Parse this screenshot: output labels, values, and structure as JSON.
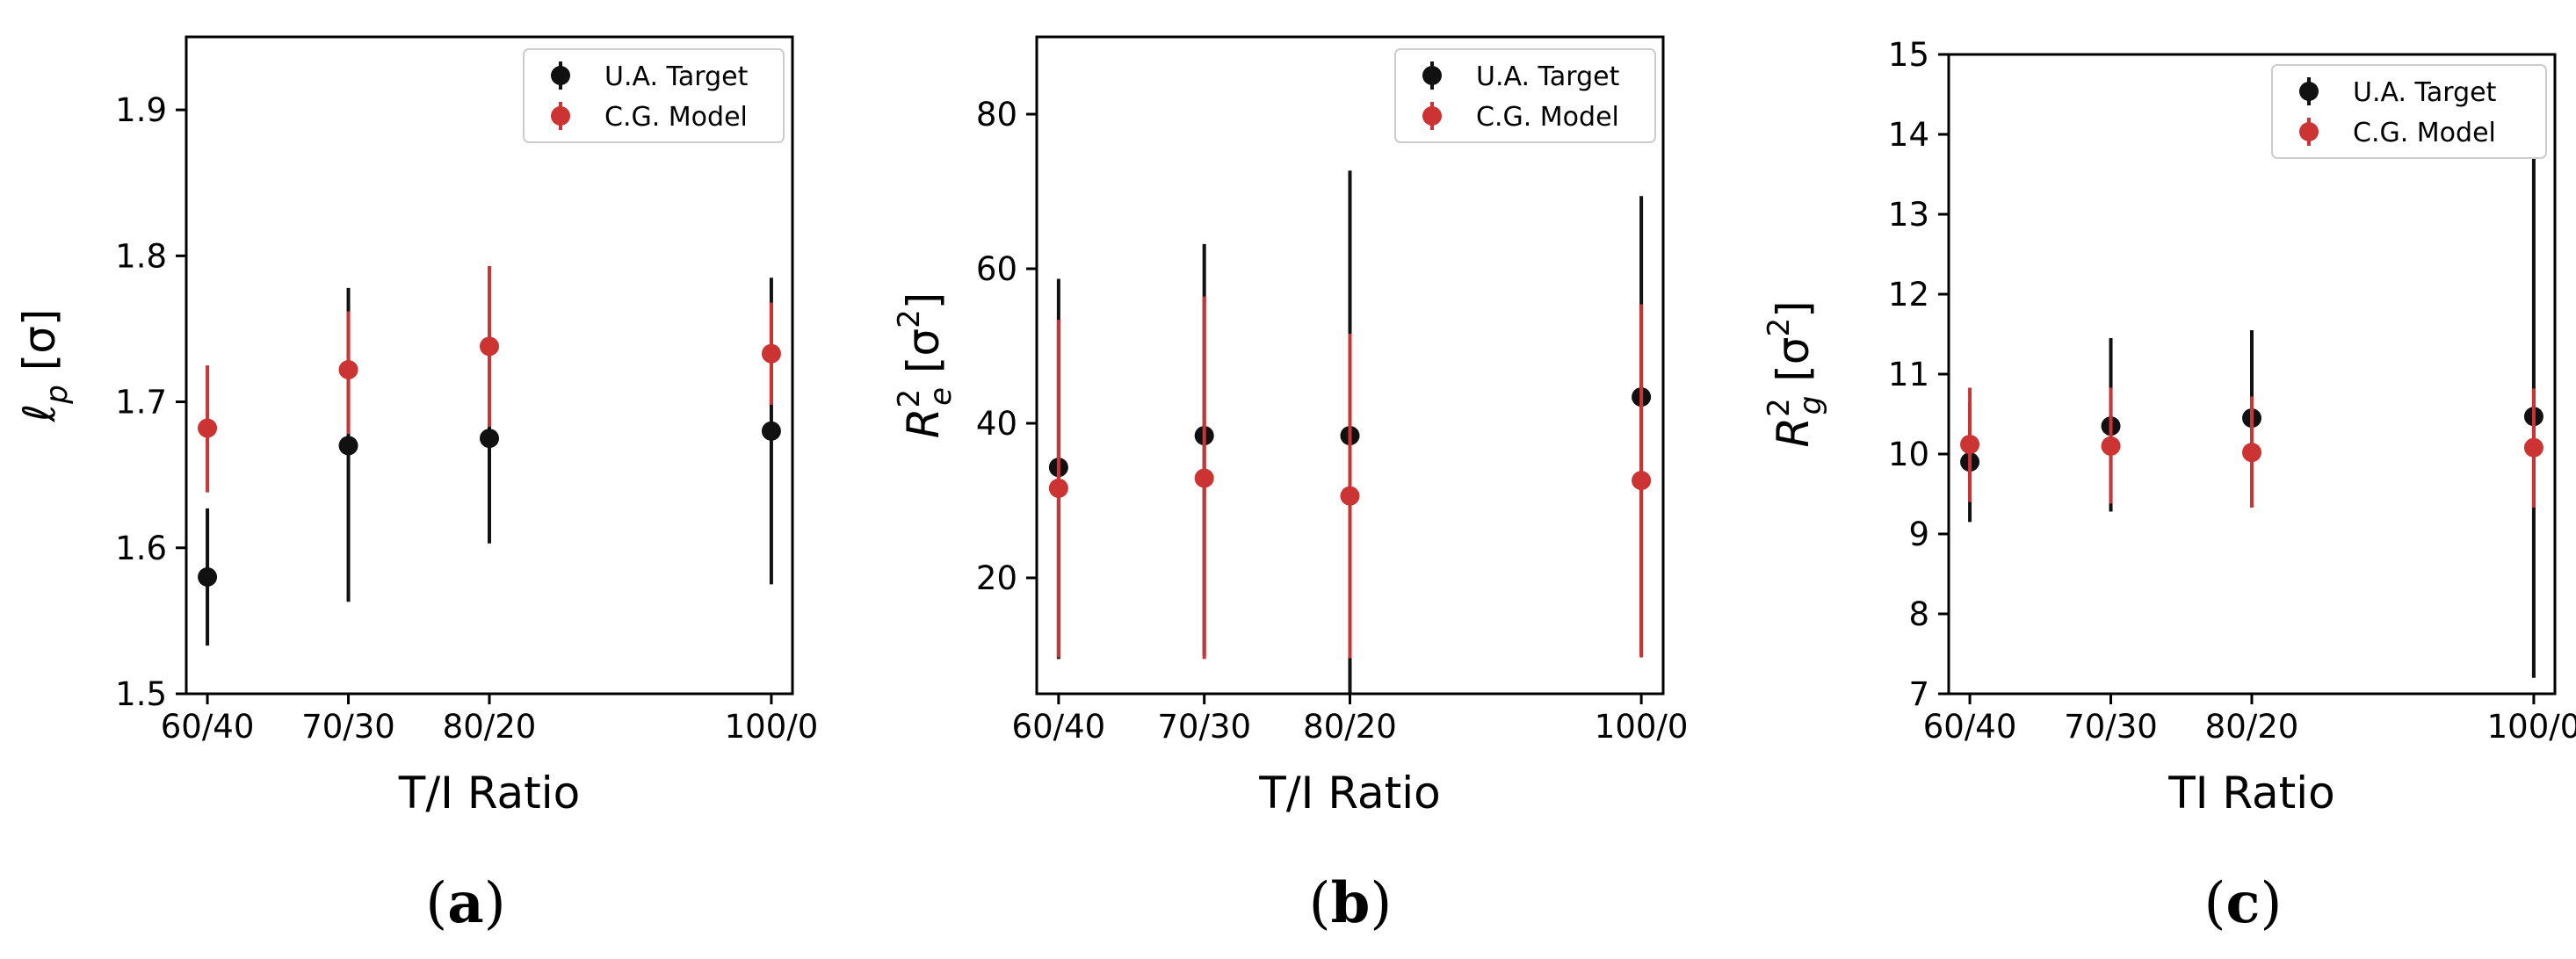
{
  "colors": {
    "target": "#111111",
    "model": "#cc3333"
  },
  "chart_data": [
    {
      "type": "scatter",
      "panel_label": "a",
      "xlabel": "T/I Ratio",
      "ylabel": "ℓ",
      "ylabel_sub": "p",
      "ylabel_unit": "[σ]",
      "categories": [
        "60/40",
        "70/30",
        "80/20",
        "100/0"
      ],
      "x": [
        60,
        70,
        80,
        100
      ],
      "xlim": [
        58.5,
        101.5
      ],
      "ylim": [
        1.5,
        1.95
      ],
      "yticks": [
        1.5,
        1.6,
        1.7,
        1.8,
        1.9
      ],
      "ytick_labels": [
        "1.5",
        "1.6",
        "1.7",
        "1.8",
        "1.9"
      ],
      "legend": "top-right",
      "series": [
        {
          "name": "U.A. Target",
          "values": [
            1.58,
            1.67,
            1.675,
            1.68
          ],
          "low": [
            1.533,
            1.563,
            1.603,
            1.575
          ],
          "high": [
            1.627,
            1.778,
            1.748,
            1.785
          ]
        },
        {
          "name": "C.G. Model",
          "values": [
            1.682,
            1.722,
            1.738,
            1.733
          ],
          "low": [
            1.638,
            1.678,
            1.683,
            1.698
          ],
          "high": [
            1.725,
            1.762,
            1.793,
            1.768
          ]
        }
      ]
    },
    {
      "type": "scatter",
      "panel_label": "b",
      "xlabel": "T/I Ratio",
      "ylabel": "R",
      "ylabel_sub": "e",
      "ylabel_sup": "2",
      "ylabel_unit": "[σ",
      "ylabel_unit_sup": "2",
      "ylabel_unit_close": "]",
      "categories": [
        "60/40",
        "70/30",
        "80/20",
        "100/0"
      ],
      "x": [
        60,
        70,
        80,
        100
      ],
      "xlim": [
        58.5,
        101.5
      ],
      "ylim": [
        5,
        90
      ],
      "yticks": [
        20,
        40,
        60,
        80
      ],
      "ytick_labels": [
        "20",
        "40",
        "60",
        "80"
      ],
      "legend": "top-right",
      "series": [
        {
          "name": "U.A. Target",
          "values": [
            34.3,
            38.4,
            38.4,
            43.4
          ],
          "low": [
            9.5,
            10,
            4,
            10
          ],
          "high": [
            58.7,
            63.2,
            72.7,
            69.4
          ]
        },
        {
          "name": "C.G. Model",
          "values": [
            31.6,
            32.9,
            30.6,
            32.6
          ],
          "low": [
            9.7,
            9.5,
            9.6,
            9.7
          ],
          "high": [
            53.4,
            56.4,
            51.6,
            55.4
          ]
        }
      ]
    },
    {
      "type": "scatter",
      "panel_label": "c",
      "xlabel": "TI Ratio",
      "ylabel": "R",
      "ylabel_sub": "g",
      "ylabel_sup": "2",
      "ylabel_unit": "[σ",
      "ylabel_unit_sup": "2",
      "ylabel_unit_close": "]",
      "categories": [
        "60/40",
        "70/30",
        "80/20",
        "100/0"
      ],
      "x": [
        60,
        70,
        80,
        100
      ],
      "xlim": [
        58.5,
        101.5
      ],
      "ylim": [
        7,
        15
      ],
      "yticks": [
        7,
        8,
        9,
        10,
        11,
        12,
        13,
        14,
        15
      ],
      "ytick_labels": [
        "7",
        "8",
        "9",
        "10",
        "11",
        "12",
        "13",
        "14",
        "15"
      ],
      "legend": "top-right",
      "series": [
        {
          "name": "U.A. Target",
          "values": [
            9.9,
            10.35,
            10.45,
            10.47
          ],
          "low": [
            9.15,
            9.28,
            9.33,
            7.2
          ],
          "high": [
            10.65,
            11.45,
            11.55,
            13.75
          ]
        },
        {
          "name": "C.G. Model",
          "values": [
            10.12,
            10.1,
            10.02,
            10.08
          ],
          "low": [
            9.4,
            9.38,
            9.33,
            9.33
          ],
          "high": [
            10.83,
            10.83,
            10.72,
            10.82
          ]
        }
      ]
    }
  ]
}
